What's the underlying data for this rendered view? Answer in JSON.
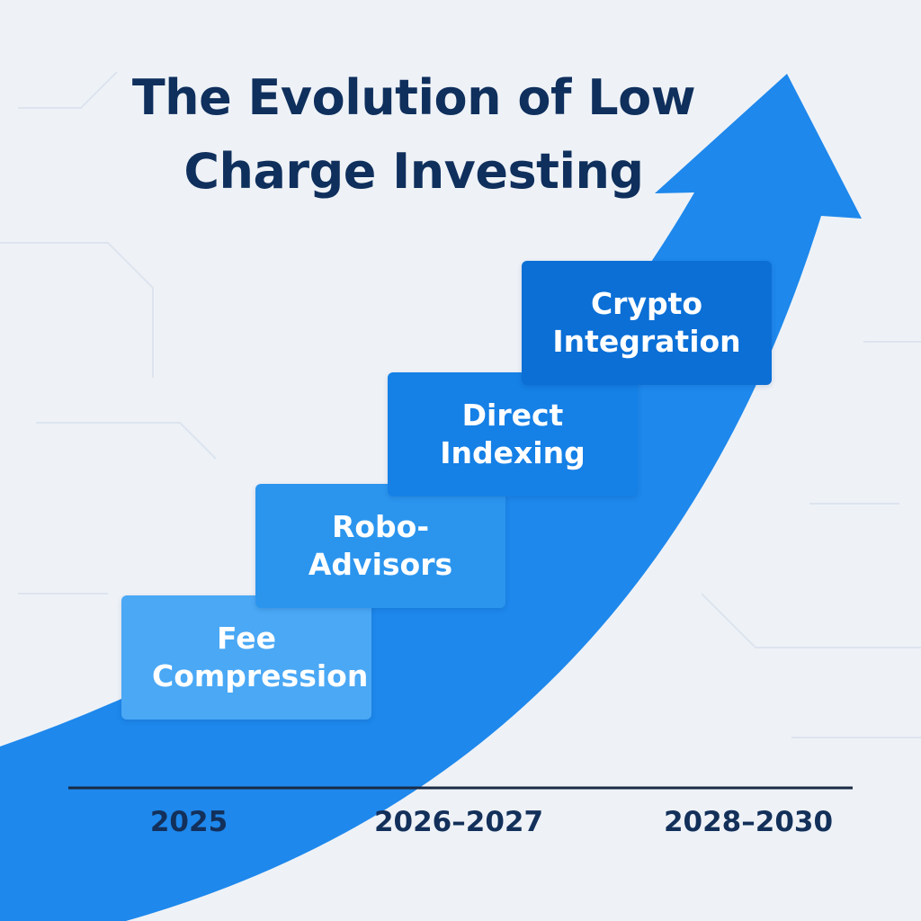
{
  "title": "The Evolution of Low Charge Investing",
  "steps": [
    {
      "label": "Fee Compression"
    },
    {
      "label": "Robo-Advisors"
    },
    {
      "label": "Direct Indexing"
    },
    {
      "label": "Crypto Integration"
    }
  ],
  "timeline": [
    "2025",
    "2026–2027",
    "2028–2030"
  ]
}
